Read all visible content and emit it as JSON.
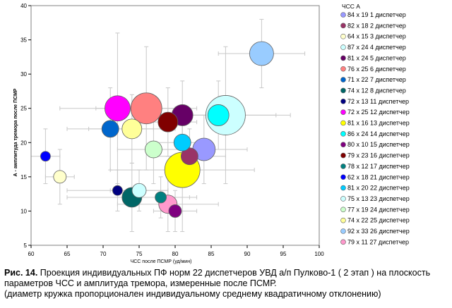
{
  "chart_data": {
    "type": "scatter",
    "xlabel": "ЧСС после ПСМР (уд/мин)",
    "ylabel": "А - амплитуда тремора после ПСМР",
    "xlim": [
      60,
      100
    ],
    "ylim": [
      5,
      40
    ],
    "xticks": [
      60,
      65,
      70,
      75,
      80,
      85,
      90,
      95,
      100
    ],
    "yticks": [
      5,
      10,
      15,
      20,
      25,
      30,
      35,
      40
    ],
    "grid": false,
    "legend_header": "ЧСС  А",
    "legend_position": "right",
    "points": [
      {
        "x": 84,
        "y": 19,
        "label": "1 диспетчер",
        "color": "#9999ff",
        "r": 16,
        "xerr": 6,
        "yerr": 5
      },
      {
        "x": 82,
        "y": 18,
        "label": "2 диспетчер",
        "color": "#993366",
        "r": 12,
        "xerr": 5,
        "yerr": 4
      },
      {
        "x": 64,
        "y": 15,
        "label": "3 диспетчер",
        "color": "#ffffcc",
        "r": 9,
        "xerr": 2,
        "yerr": 4
      },
      {
        "x": 87,
        "y": 24,
        "label": "4 диспетчер",
        "color": "#ccffff",
        "r": 28,
        "xerr": 9,
        "yerr": 10
      },
      {
        "x": 81,
        "y": 24,
        "label": "5 диспетчер",
        "color": "#660066",
        "r": 15,
        "xerr": 6,
        "yerr": 5
      },
      {
        "x": 76,
        "y": 25,
        "label": "6 диспетчер",
        "color": "#ff8080",
        "r": 22,
        "xerr": 7,
        "yerr": 9
      },
      {
        "x": 71,
        "y": 22,
        "label": "7 диспетчер",
        "color": "#0066cc",
        "r": 12,
        "xerr": 6,
        "yerr": 6
      },
      {
        "x": 74,
        "y": 12,
        "label": "8 диспетчер",
        "color": "#006666",
        "r": 14,
        "xerr": 9,
        "yerr": 5
      },
      {
        "x": 72,
        "y": 13,
        "label": "11 диспетчер",
        "color": "#000080",
        "r": 7,
        "xerr": 7,
        "yerr": 3
      },
      {
        "x": 72,
        "y": 25,
        "label": "12 диспетчер",
        "color": "#ff00ff",
        "r": 18,
        "xerr": 8,
        "yerr": 11
      },
      {
        "x": 81,
        "y": 16,
        "label": "13 диспетчер",
        "color": "#ffff00",
        "r": 25,
        "xerr": 10,
        "yerr": 9
      },
      {
        "x": 86,
        "y": 24,
        "label": "14 диспетчер",
        "color": "#00ffff",
        "r": 15,
        "xerr": 8,
        "yerr": 5
      },
      {
        "x": 80,
        "y": 10,
        "label": "15 диспетчер",
        "color": "#800080",
        "r": 9,
        "xerr": 3,
        "yerr": 3
      },
      {
        "x": 79,
        "y": 23,
        "label": "16 диспетчер",
        "color": "#800000",
        "r": 14,
        "xerr": 4,
        "yerr": 5
      },
      {
        "x": 78,
        "y": 12,
        "label": "17 диспетчер",
        "color": "#008080",
        "r": 8,
        "xerr": 4,
        "yerr": 3
      },
      {
        "x": 62,
        "y": 18,
        "label": "21 диспетчер",
        "color": "#0000ff",
        "r": 7,
        "xerr": 2,
        "yerr": 4
      },
      {
        "x": 81,
        "y": 20,
        "label": "22 диспетчер",
        "color": "#00ccff",
        "r": 12,
        "xerr": 4,
        "yerr": 4
      },
      {
        "x": 75,
        "y": 13,
        "label": "23 диспетчер",
        "color": "#ccffff",
        "r": 10,
        "xerr": 4,
        "yerr": 3
      },
      {
        "x": 77,
        "y": 19,
        "label": "24 диспетчер",
        "color": "#ccffcc",
        "r": 12,
        "xerr": 5,
        "yerr": 5
      },
      {
        "x": 74,
        "y": 22,
        "label": "25 диспетчер",
        "color": "#ffff99",
        "r": 14,
        "xerr": 6,
        "yerr": 5
      },
      {
        "x": 92,
        "y": 33,
        "label": "26 диспетчер",
        "color": "#99ccff",
        "r": 17,
        "xerr": 6,
        "yerr": 5
      },
      {
        "x": 79,
        "y": 11,
        "label": "27 диспетчер",
        "color": "#ff99cc",
        "r": 13,
        "xerr": 7,
        "yerr": 4
      }
    ],
    "legend_entries": [
      {
        "chss": "84",
        "a": "19",
        "label": "1 диспетчер",
        "color": "#9999ff"
      },
      {
        "chss": "82",
        "a": "18",
        "label": "2 диспетчер",
        "color": "#993366"
      },
      {
        "chss": "64",
        "a": "15",
        "label": "3 диспетчер",
        "color": "#ffffcc"
      },
      {
        "chss": "87",
        "a": "24",
        "label": "4 диспетчер",
        "color": "#ccffff"
      },
      {
        "chss": "81",
        "a": "24",
        "label": "5 диспетчер",
        "color": "#660066"
      },
      {
        "chss": "76",
        "a": "25",
        "label": "6 диспетчер",
        "color": "#ff8080"
      },
      {
        "chss": "71",
        "a": "22",
        "label": "7 диспетчер",
        "color": "#0066cc"
      },
      {
        "chss": "74",
        "a": "12",
        "label": "8 диспетчер",
        "color": "#006666"
      },
      {
        "chss": "72",
        "a": "13",
        "label": "11 диспетчер",
        "color": "#000080"
      },
      {
        "chss": "72",
        "a": "25",
        "label": "12 диспетчер",
        "color": "#ff00ff"
      },
      {
        "chss": "81",
        "a": "16",
        "label": "13 диспетчер",
        "color": "#ffff00"
      },
      {
        "chss": "86",
        "a": "24",
        "label": "14 диспетчер",
        "color": "#00ffff"
      },
      {
        "chss": "80",
        "a": "10",
        "label": "15 диспетчер",
        "color": "#800080"
      },
      {
        "chss": "79",
        "a": "23",
        "label": "16 диспетчер",
        "color": "#800000"
      },
      {
        "chss": "78",
        "a": "12",
        "label": "17 диспетчер",
        "color": "#008080"
      },
      {
        "chss": "62",
        "a": "18",
        "label": "21 диспетчер",
        "color": "#0000ff"
      },
      {
        "chss": "81",
        "a": "20",
        "label": "22 диспетчер",
        "color": "#00ccff"
      },
      {
        "chss": "75",
        "a": "13",
        "label": "23 диспетчер",
        "color": "#ccffff"
      },
      {
        "chss": "77",
        "a": "19",
        "label": "24 диспетчер",
        "color": "#ccffcc"
      },
      {
        "chss": "74",
        "a": "22",
        "label": "25 диспетчер",
        "color": "#ffff99"
      },
      {
        "chss": "92",
        "a": "33",
        "label": "26 диспетчер",
        "color": "#99ccff"
      },
      {
        "chss": "79",
        "a": "11",
        "label": "27 диспетчер",
        "color": "#ff99cc"
      }
    ]
  },
  "caption": {
    "fig_label": "Рис. 14.",
    "line1": " Проекция индивидуальных ПФ норм 22 диспетчеров УВД а/п Пулково-1 ( 2 этап ) на плоскость",
    "line2": "параметров ЧСС и амплитуда тремора, измеренные после ПСМР.",
    "line3": "(диаметр кружка пропорционален индивидуальному среднему квадратичному отклонению)"
  }
}
